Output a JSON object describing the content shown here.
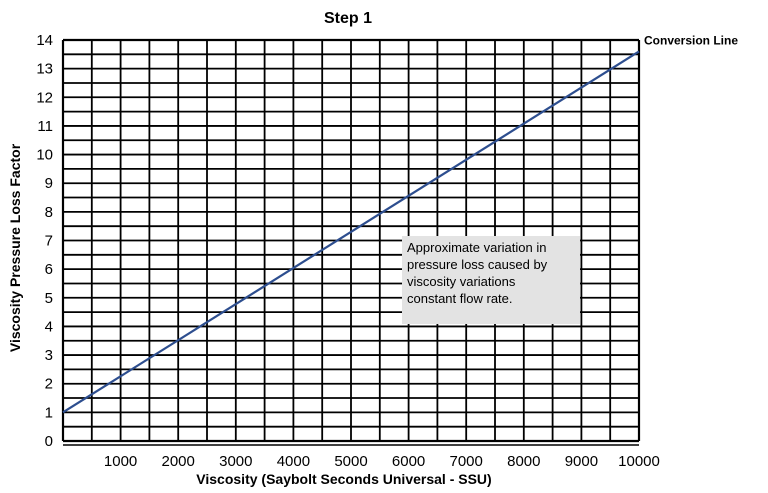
{
  "chart_data": {
    "type": "line",
    "title": "Step 1",
    "xlabel": "Viscosity (Saybolt Seconds Universal - SSU)",
    "ylabel": "Viscosity Pressure Loss Factor",
    "xlim": [
      0,
      10000
    ],
    "ylim": [
      0,
      14
    ],
    "x_ticks": [
      1000,
      2000,
      3000,
      4000,
      5000,
      6000,
      7000,
      8000,
      9000,
      10000
    ],
    "y_ticks": [
      0,
      1,
      2,
      3,
      4,
      5,
      6,
      7,
      8,
      9,
      10,
      11,
      12,
      13,
      14
    ],
    "grid": true,
    "series": [
      {
        "name": "Conversion Line",
        "x": [
          0,
          10000
        ],
        "y": [
          1,
          13.6
        ],
        "color": "#2d4e8f"
      }
    ],
    "annotation": {
      "lines": [
        "Approximate variation in",
        "pressure loss caused by",
        "viscosity variations",
        "constant flow rate."
      ],
      "background": "#e3e3e3"
    }
  }
}
